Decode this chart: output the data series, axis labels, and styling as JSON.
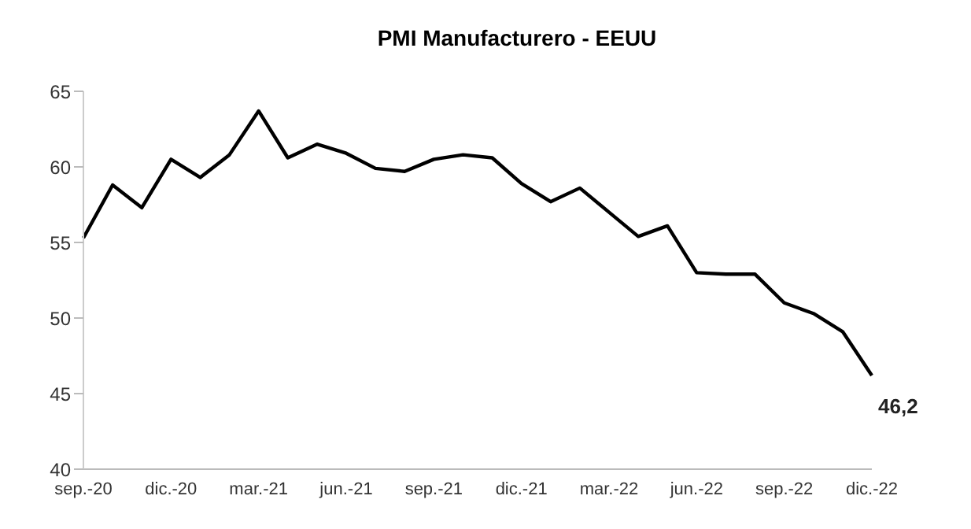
{
  "chart_data": {
    "type": "line",
    "title": "PMI Manufacturero - EEUU",
    "categories": [
      "sep.-20",
      null,
      null,
      "dic.-20",
      null,
      null,
      "mar.-21",
      null,
      null,
      "jun.-21",
      null,
      null,
      "sep.-21",
      null,
      null,
      "dic.-21",
      null,
      null,
      "mar.-22",
      null,
      null,
      "jun.-22",
      null,
      null,
      "sep.-22",
      null,
      null,
      "dic.-22"
    ],
    "series": [
      {
        "color": "#000000",
        "values": [
          55.3,
          58.8,
          57.3,
          60.5,
          59.3,
          60.8,
          63.7,
          60.6,
          61.5,
          60.9,
          59.9,
          59.7,
          60.5,
          60.8,
          60.6,
          58.9,
          57.7,
          58.6,
          57.0,
          55.4,
          56.1,
          53.0,
          52.9,
          52.9,
          51.0,
          50.3,
          49.1,
          46.2
        ],
        "value_labels": [
          null,
          null,
          null,
          null,
          null,
          null,
          null,
          null,
          null,
          null,
          null,
          null,
          null,
          null,
          null,
          null,
          null,
          null,
          null,
          null,
          null,
          null,
          null,
          null,
          null,
          null,
          null,
          "46,2"
        ]
      }
    ],
    "ylim": [
      40,
      65
    ],
    "yticks": [
      40,
      45,
      50,
      55,
      60,
      65
    ],
    "marker": "none",
    "line_style": "solid"
  }
}
